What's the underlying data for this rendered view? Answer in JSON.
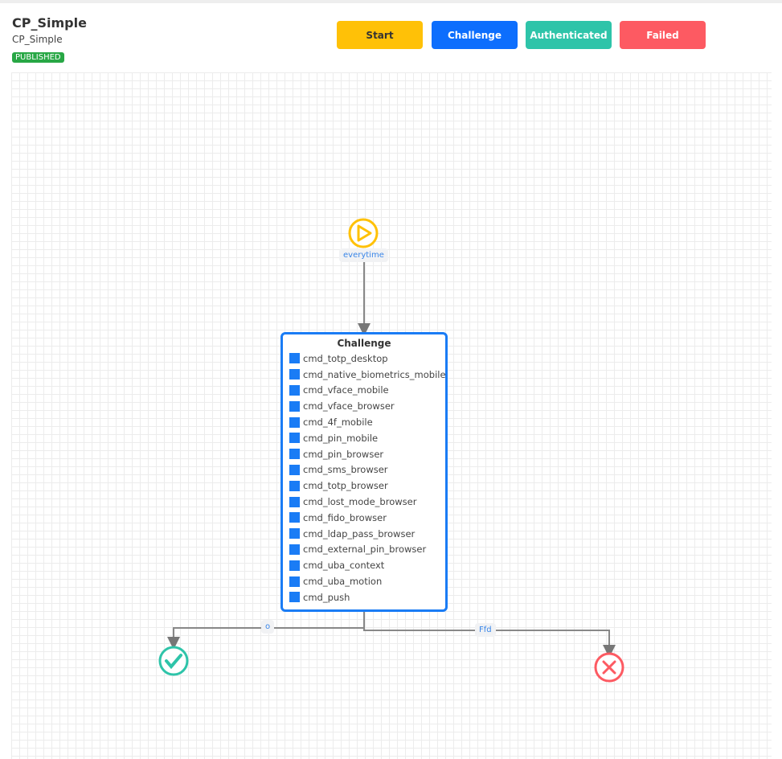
{
  "header": {
    "title": "CP_Simple",
    "subtitle": "CP_Simple",
    "status": "PUBLISHED"
  },
  "legend": [
    {
      "label": "Start",
      "color": "#ffc107",
      "text_color": "#333"
    },
    {
      "label": "Challenge",
      "color": "#0d6efd",
      "text_color": "#fff"
    },
    {
      "label": "Authenticated",
      "color": "#2ec4a9",
      "text_color": "#fff"
    },
    {
      "label": "Failed",
      "color": "#fd5a62",
      "text_color": "#fff"
    }
  ],
  "flow": {
    "start_edge_label": "everytime",
    "challenge": {
      "title": "Challenge",
      "items": [
        "cmd_totp_desktop",
        "cmd_native_biometrics_mobile",
        "cmd_vface_mobile",
        "cmd_vface_browser",
        "cmd_4f_mobile",
        "cmd_pin_mobile",
        "cmd_pin_browser",
        "cmd_sms_browser",
        "cmd_totp_browser",
        "cmd_lost_mode_browser",
        "cmd_fido_browser",
        "cmd_ldap_pass_browser",
        "cmd_external_pin_browser",
        "cmd_uba_context",
        "cmd_uba_motion",
        "cmd_push"
      ]
    },
    "success_edge_label": "o",
    "failure_edge_label": "Ffd"
  }
}
